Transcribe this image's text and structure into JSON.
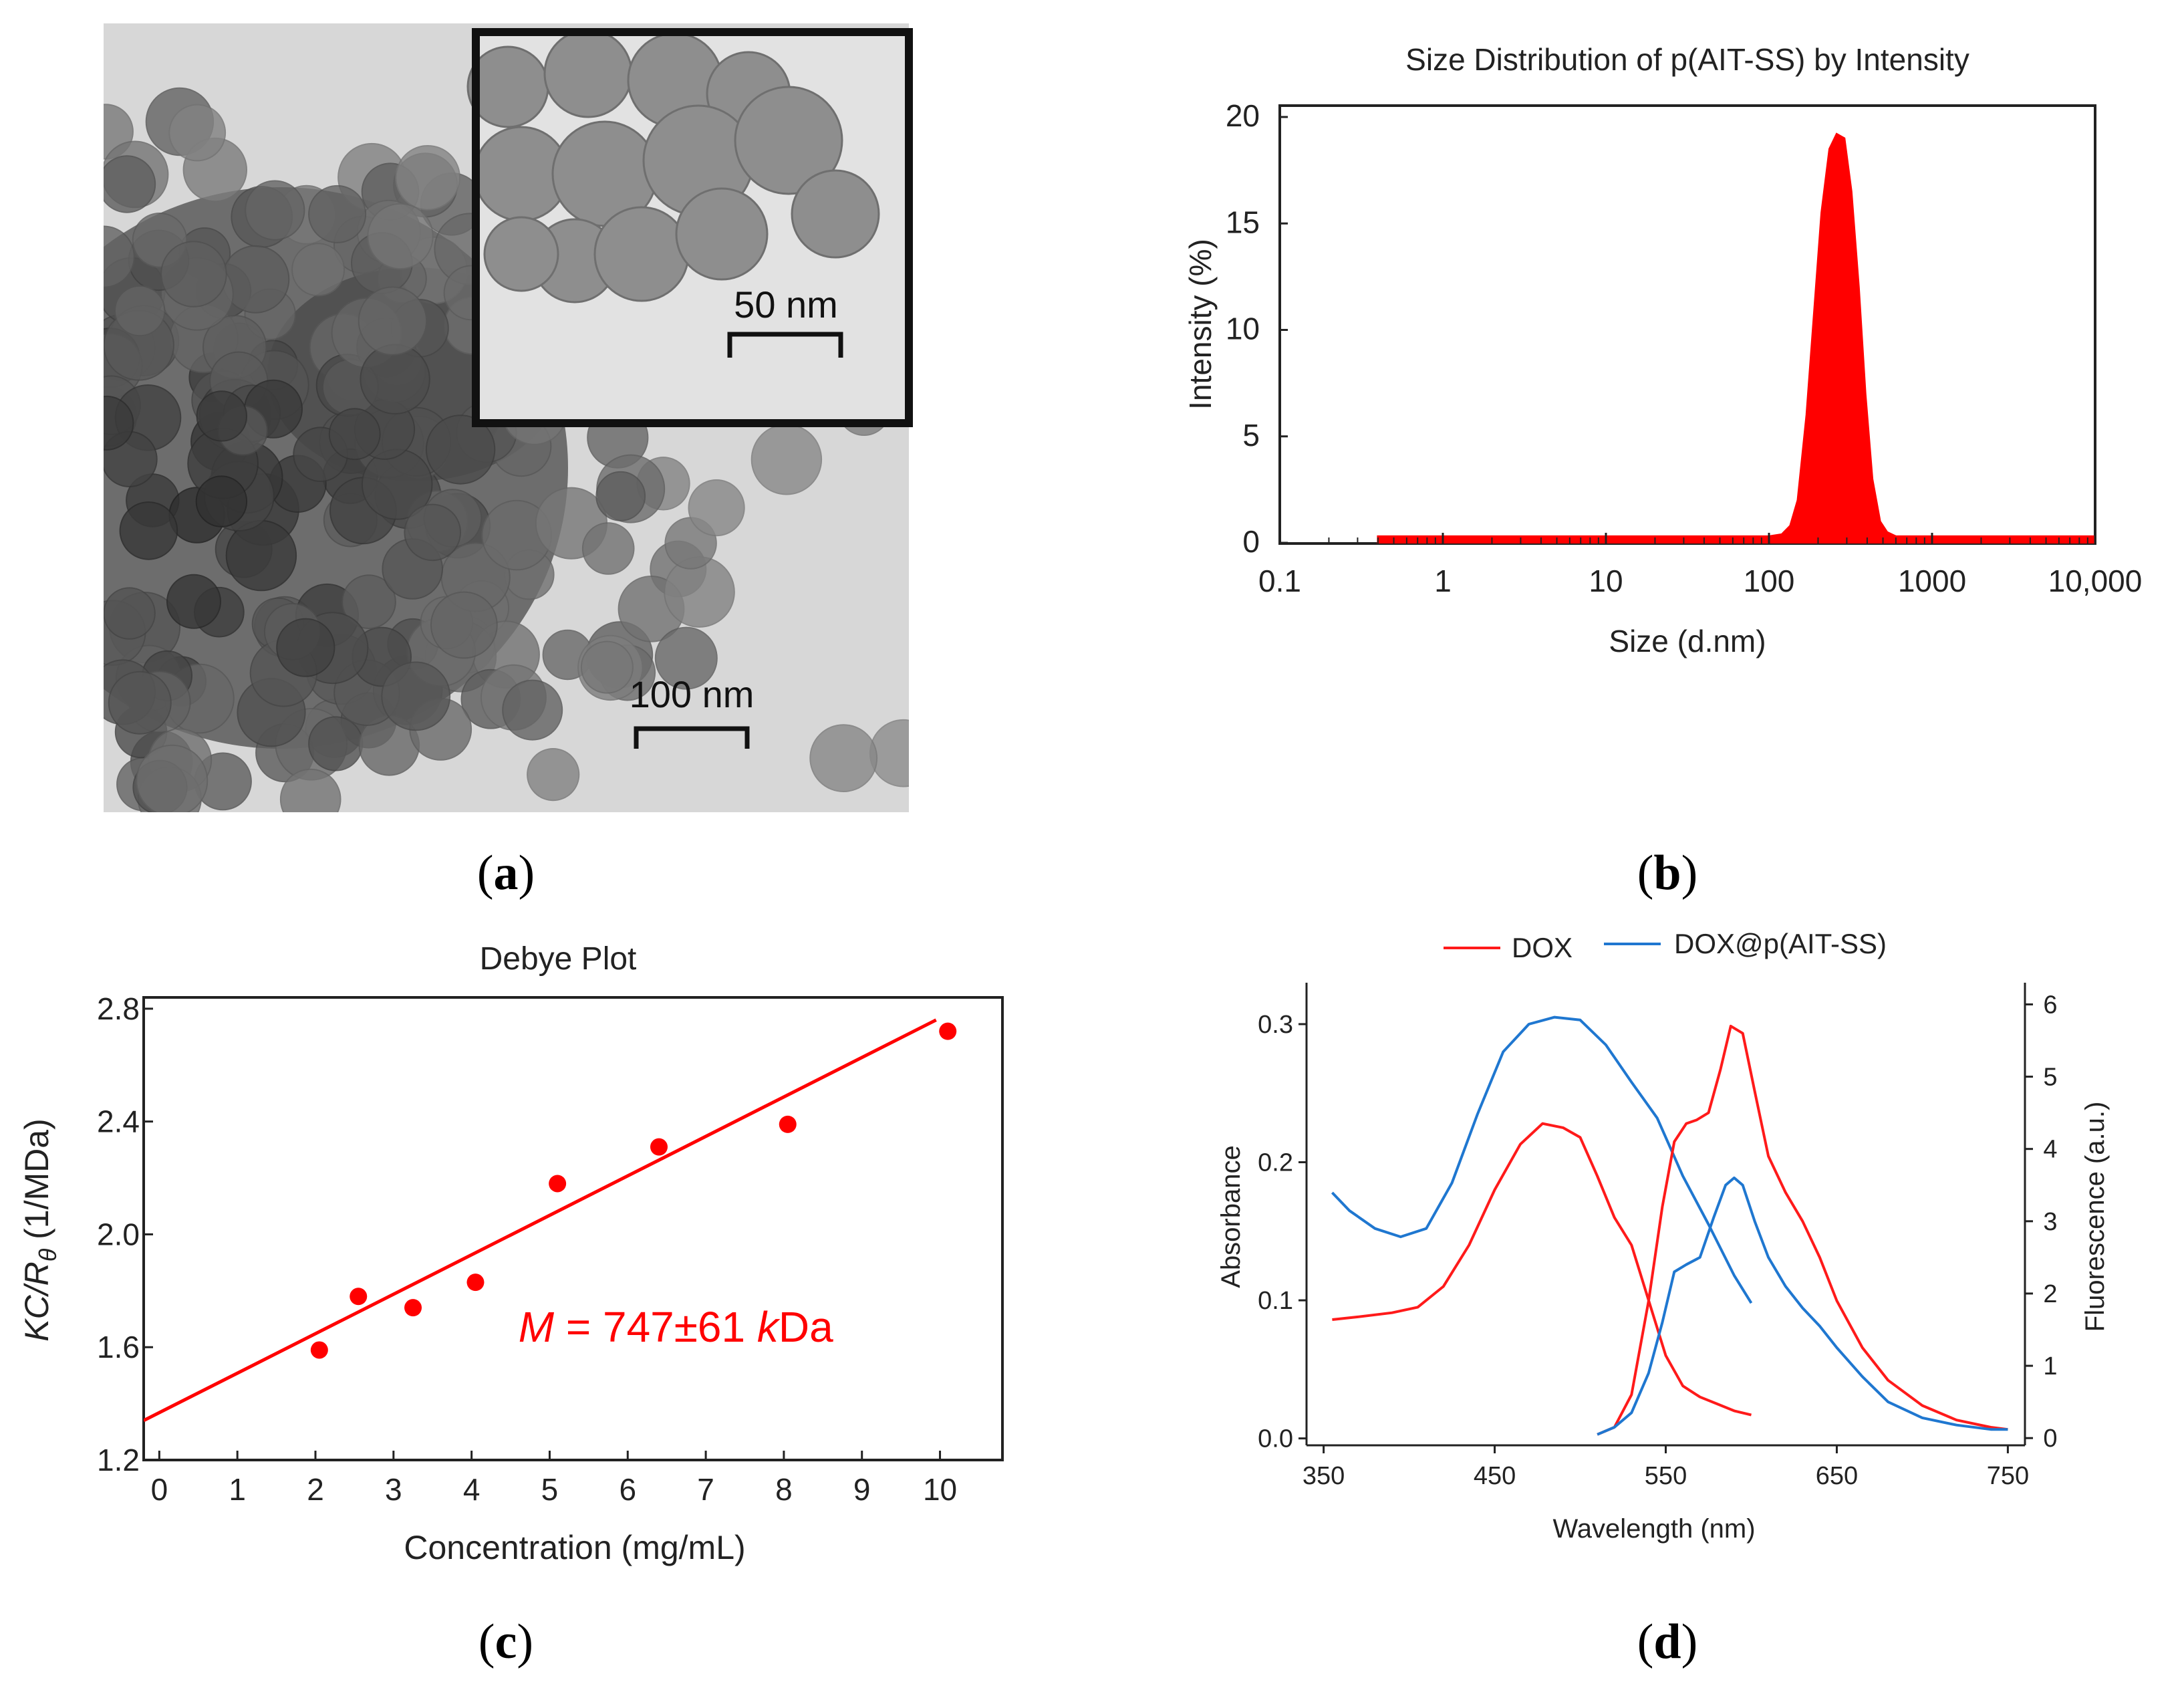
{
  "panels": {
    "a": {
      "label_open": "(",
      "letter": "a",
      "label_close": ")",
      "scale_main": "100 nm",
      "scale_inset": "50 nm"
    },
    "b": {
      "label_open": "(",
      "letter": "b",
      "label_close": ")"
    },
    "c": {
      "label_open": "(",
      "letter": "c",
      "label_close": ")"
    },
    "d": {
      "label_open": "(",
      "letter": "d",
      "label_close": ")"
    }
  },
  "chart_data": [
    {
      "id": "b",
      "type": "area",
      "title": "Size Distribution of p(AIT-SS) by Intensity",
      "xlabel": "Size (d.nm)",
      "ylabel": "Intensity (%)",
      "xscale": "log",
      "xlim": [
        0.1,
        10000
      ],
      "ylim": [
        0,
        20
      ],
      "xticks": [
        0.1,
        1,
        10,
        100,
        1000,
        10000
      ],
      "xtick_labels": [
        "0.1",
        "1",
        "10",
        "100",
        "1000",
        "10,000"
      ],
      "yticks": [
        0,
        5,
        10,
        15,
        20
      ],
      "ytick_labels": [
        "0",
        "5",
        "10",
        "15",
        "20"
      ],
      "color": "#ff0000",
      "series": [
        {
          "name": "Intensity",
          "x": [
            0.4,
            100,
            120,
            135,
            150,
            170,
            190,
            210,
            235,
            260,
            290,
            320,
            355,
            390,
            430,
            480,
            530,
            600,
            10000
          ],
          "y": [
            0.3,
            0.3,
            0.4,
            0.8,
            2.0,
            6.0,
            11.0,
            15.5,
            18.5,
            19.2,
            19.0,
            16.5,
            12.0,
            7.0,
            3.0,
            1.0,
            0.5,
            0.3,
            0.3
          ]
        }
      ]
    },
    {
      "id": "c",
      "type": "scatter",
      "title": "Debye Plot",
      "xlabel": "Concentration (mg/mL)",
      "ylabel_main": "KC/R",
      "ylabel_sub": "θ",
      "ylabel_rest": " (1/MDa)",
      "xlim": [
        -0.2,
        10.8
      ],
      "ylim": [
        1.2,
        2.84
      ],
      "xticks": [
        0,
        1,
        2,
        3,
        4,
        5,
        6,
        7,
        8,
        9,
        10
      ],
      "xtick_labels": [
        "0",
        "1",
        "2",
        "3",
        "4",
        "5",
        "6",
        "7",
        "8",
        "9",
        "10"
      ],
      "yticks": [
        1.2,
        1.6,
        2.0,
        2.4,
        2.8
      ],
      "ytick_labels": [
        "1.2",
        "1.6",
        "2.0",
        "2.4",
        "2.8"
      ],
      "color": "#ff0000",
      "points": {
        "x": [
          2.05,
          2.55,
          3.25,
          4.05,
          5.1,
          6.4,
          8.05,
          10.1
        ],
        "y": [
          1.59,
          1.78,
          1.74,
          1.83,
          2.18,
          2.31,
          2.39,
          2.72
        ]
      },
      "fit_line": {
        "x": [
          -0.2,
          9.95
        ],
        "y": [
          1.34,
          2.76
        ]
      },
      "annotation": {
        "var": "M",
        "eq": " = 747±61 ",
        "unit_prefix": "k",
        "unit": "Da",
        "x": 4.6,
        "y": 1.62
      }
    },
    {
      "id": "d",
      "type": "line",
      "xlabel": "Wavelength (nm)",
      "ylabel_left": "Absorbance",
      "ylabel_right": "Fluorescence (a.u.)",
      "xlim": [
        340,
        760
      ],
      "ylim_left": [
        -0.005,
        0.33
      ],
      "ylim_right": [
        -0.1,
        6.3
      ],
      "xticks": [
        350,
        450,
        550,
        650,
        750
      ],
      "xtick_labels": [
        "350",
        "450",
        "550",
        "650",
        "750"
      ],
      "yticks_left": [
        0.0,
        0.1,
        0.2,
        0.3
      ],
      "ytick_labels_left": [
        "0.0",
        "0.1",
        "0.2",
        "0.3"
      ],
      "yticks_right": [
        0,
        1,
        2,
        3,
        4,
        5,
        6
      ],
      "ytick_labels_right": [
        "0",
        "1",
        "2",
        "3",
        "4",
        "5",
        "6"
      ],
      "legend": [
        {
          "name": "DOX",
          "color": "#ff1a1a"
        },
        {
          "name": "DOX@p(AIT-SS)",
          "color": "#1f77d0"
        }
      ],
      "series": [
        {
          "name": "DOX absorbance",
          "axis": "left",
          "color": "#ff1a1a",
          "x": [
            355,
            370,
            390,
            405,
            420,
            435,
            450,
            465,
            478,
            490,
            500,
            510,
            520,
            530,
            540,
            550,
            560,
            570,
            580,
            590,
            600
          ],
          "y": [
            0.086,
            0.088,
            0.091,
            0.095,
            0.11,
            0.14,
            0.18,
            0.213,
            0.228,
            0.225,
            0.218,
            0.19,
            0.16,
            0.14,
            0.1,
            0.06,
            0.038,
            0.03,
            0.025,
            0.02,
            0.017
          ]
        },
        {
          "name": "DOX@p(AIT-SS) absorbance",
          "axis": "left",
          "color": "#1f77d0",
          "x": [
            355,
            365,
            380,
            395,
            410,
            425,
            440,
            455,
            470,
            485,
            500,
            515,
            530,
            545,
            560,
            575,
            590,
            600
          ],
          "y": [
            0.178,
            0.165,
            0.152,
            0.146,
            0.152,
            0.185,
            0.235,
            0.28,
            0.3,
            0.305,
            0.303,
            0.285,
            0.258,
            0.232,
            0.19,
            0.155,
            0.118,
            0.098
          ]
        },
        {
          "name": "DOX fluorescence",
          "axis": "right",
          "color": "#ff1a1a",
          "x": [
            510,
            520,
            530,
            540,
            548,
            555,
            562,
            568,
            575,
            582,
            588,
            595,
            602,
            610,
            620,
            630,
            640,
            650,
            665,
            680,
            700,
            720,
            740,
            750
          ],
          "y": [
            0.05,
            0.15,
            0.6,
            1.9,
            3.2,
            4.1,
            4.35,
            4.4,
            4.5,
            5.1,
            5.7,
            5.6,
            4.8,
            3.9,
            3.4,
            3.0,
            2.5,
            1.9,
            1.25,
            0.8,
            0.45,
            0.25,
            0.15,
            0.12
          ]
        },
        {
          "name": "DOX@p(AIT-SS) fluorescence",
          "axis": "right",
          "color": "#1f77d0",
          "x": [
            510,
            520,
            530,
            540,
            548,
            555,
            562,
            570,
            578,
            585,
            590,
            595,
            602,
            610,
            620,
            630,
            640,
            650,
            665,
            680,
            700,
            720,
            740,
            750
          ],
          "y": [
            0.05,
            0.15,
            0.35,
            0.9,
            1.6,
            2.3,
            2.4,
            2.5,
            3.05,
            3.5,
            3.6,
            3.5,
            3.0,
            2.5,
            2.1,
            1.8,
            1.55,
            1.25,
            0.85,
            0.5,
            0.28,
            0.18,
            0.12,
            0.12
          ]
        }
      ]
    }
  ]
}
